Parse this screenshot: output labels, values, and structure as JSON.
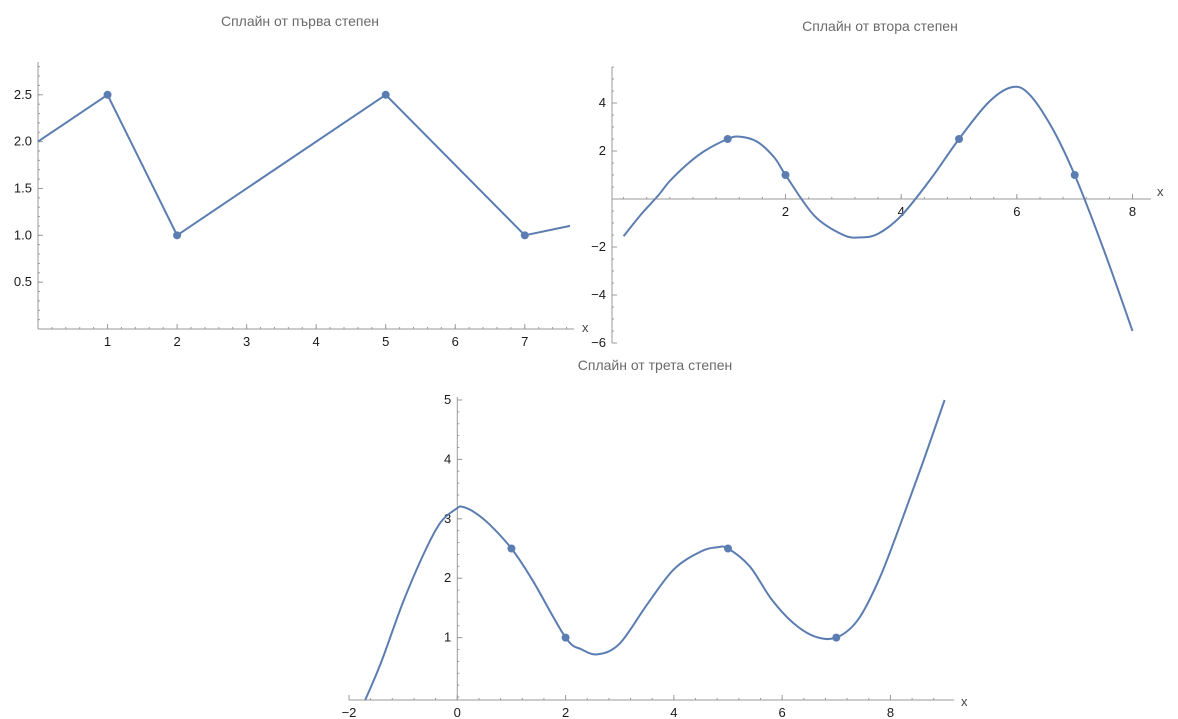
{
  "colors": {
    "series": "#5b7db1",
    "axis": "#9a9a9a",
    "text": "#1a1a1a",
    "title": "#6a6a6a"
  },
  "chart_data": [
    {
      "type": "line",
      "title": "Сплайн от първа степен",
      "xlabel": "x",
      "ylabel": "",
      "xlim": [
        0,
        7.65
      ],
      "ylim": [
        0,
        2.85
      ],
      "x_ticks": [
        1,
        2,
        3,
        4,
        5,
        6,
        7
      ],
      "x_tick_labels": [
        "1",
        "2",
        "3",
        "4",
        "5",
        "6",
        "7"
      ],
      "y_ticks": [
        0.5,
        1.0,
        1.5,
        2.0,
        2.5
      ],
      "y_tick_labels": [
        "0.5",
        "1.0",
        "1.5",
        "2.0",
        "2.5"
      ],
      "grid": false,
      "series": [
        {
          "x": [
            0,
            1,
            2,
            5,
            7,
            7.65
          ],
          "y": [
            2.0,
            2.5,
            1.0,
            2.5,
            1.0,
            1.1
          ]
        }
      ],
      "points": {
        "x": [
          1,
          2,
          5,
          7
        ],
        "y": [
          2.5,
          1.0,
          2.5,
          1.0
        ]
      }
    },
    {
      "type": "line",
      "title": "Сплайн от втора степен",
      "xlabel": "x",
      "ylabel": "",
      "xlim": [
        -1.0,
        8.25
      ],
      "ylim": [
        -6,
        5.5
      ],
      "x_ticks": [
        2,
        4,
        6,
        8
      ],
      "x_tick_labels": [
        "2",
        "4",
        "6",
        "8"
      ],
      "y_ticks": [
        -6,
        -4,
        -2,
        2,
        4
      ],
      "y_tick_labels": [
        "−6",
        "−4",
        "−2",
        "2",
        "4"
      ],
      "grid": false,
      "series": [
        {
          "x": [
            -0.8,
            -0.5,
            -0.2,
            0,
            0.3,
            0.6,
            1.0,
            1.2,
            1.5,
            1.8,
            2.0,
            2.5,
            3.0,
            3.3,
            3.6,
            4.0,
            4.5,
            5.0,
            5.5,
            5.9,
            6.2,
            6.6,
            7.0,
            7.5,
            8.0
          ],
          "y": [
            -1.55,
            -0.65,
            0.15,
            0.75,
            1.45,
            2.0,
            2.5,
            2.6,
            2.4,
            1.75,
            1.0,
            -0.7,
            -1.5,
            -1.6,
            -1.45,
            -0.7,
            0.8,
            2.5,
            4.0,
            4.65,
            4.4,
            3.0,
            1.0,
            -2.1,
            -5.5
          ]
        }
      ],
      "points": {
        "x": [
          1,
          2,
          5,
          7
        ],
        "y": [
          2.5,
          1.0,
          2.5,
          1.0
        ]
      }
    },
    {
      "type": "line",
      "title": "Сплайн от трета степен",
      "xlabel": "x",
      "ylabel": "",
      "xlim": [
        -2.0,
        9.1
      ],
      "ylim": [
        -0.05,
        5.05
      ],
      "x_ticks": [
        -2,
        0,
        2,
        4,
        6,
        8
      ],
      "x_tick_labels": [
        "−2",
        "0",
        "2",
        "4",
        "6",
        "8"
      ],
      "y_ticks": [
        1,
        2,
        3,
        4,
        5
      ],
      "y_tick_labels": [
        "1",
        "2",
        "3",
        "4",
        "5"
      ],
      "grid": false,
      "series": [
        {
          "x": [
            -1.7,
            -1.4,
            -1.0,
            -0.6,
            -0.3,
            0,
            0.1,
            0.3,
            0.6,
            1.0,
            1.4,
            2.0,
            2.3,
            2.6,
            3.0,
            3.5,
            4.0,
            4.5,
            4.8,
            5.0,
            5.4,
            5.8,
            6.2,
            6.6,
            7.0,
            7.4,
            7.8,
            8.2,
            8.6,
            9.0
          ],
          "y": [
            -0.05,
            0.6,
            1.6,
            2.45,
            2.95,
            3.18,
            3.2,
            3.12,
            2.9,
            2.5,
            1.95,
            1.0,
            0.8,
            0.72,
            0.9,
            1.55,
            2.15,
            2.45,
            2.52,
            2.5,
            2.2,
            1.65,
            1.25,
            1.02,
            1.0,
            1.3,
            2.0,
            2.95,
            3.95,
            5.0
          ]
        }
      ],
      "points": {
        "x": [
          1,
          2,
          5,
          7
        ],
        "y": [
          2.5,
          1.0,
          2.5,
          1.0
        ]
      }
    }
  ]
}
